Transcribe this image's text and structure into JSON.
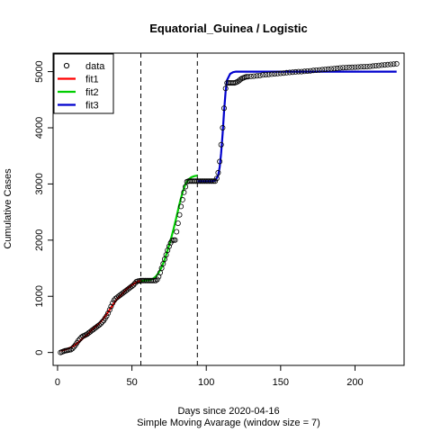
{
  "chart_data": {
    "type": "line",
    "title": "Equatorial_Guinea / Logistic",
    "xlabel": "Days since 2020-04-16",
    "xlabel2": "Simple Moving Avarage (window size = 7)",
    "ylabel": "Cumulative Cases",
    "xlim": [
      -3,
      233
    ],
    "ylim": [
      -230,
      5330
    ],
    "xticks": [
      0,
      50,
      100,
      150,
      200
    ],
    "yticks": [
      0,
      1000,
      2000,
      3000,
      4000,
      5000
    ],
    "grid": false,
    "legend_position": "top-left",
    "legend": [
      {
        "label": "data",
        "kind": "point",
        "color": "#000000"
      },
      {
        "label": "fit1",
        "kind": "line",
        "color": "#ff0000"
      },
      {
        "label": "fit2",
        "kind": "line",
        "color": "#00cd00"
      },
      {
        "label": "fit3",
        "kind": "line",
        "color": "#0000cd"
      }
    ],
    "vlines": [
      56,
      94
    ],
    "data_points": [
      [
        2,
        0
      ],
      [
        3,
        10
      ],
      [
        4,
        20
      ],
      [
        5,
        30
      ],
      [
        6,
        35
      ],
      [
        7,
        40
      ],
      [
        8,
        45
      ],
      [
        9,
        50
      ],
      [
        10,
        70
      ],
      [
        11,
        100
      ],
      [
        12,
        130
      ],
      [
        13,
        170
      ],
      [
        14,
        210
      ],
      [
        15,
        240
      ],
      [
        16,
        270
      ],
      [
        17,
        290
      ],
      [
        18,
        300
      ],
      [
        19,
        315
      ],
      [
        20,
        330
      ],
      [
        21,
        350
      ],
      [
        22,
        370
      ],
      [
        23,
        390
      ],
      [
        24,
        410
      ],
      [
        25,
        430
      ],
      [
        26,
        450
      ],
      [
        27,
        470
      ],
      [
        28,
        490
      ],
      [
        29,
        510
      ],
      [
        30,
        540
      ],
      [
        31,
        570
      ],
      [
        32,
        610
      ],
      [
        33,
        650
      ],
      [
        34,
        700
      ],
      [
        35,
        760
      ],
      [
        36,
        820
      ],
      [
        37,
        880
      ],
      [
        38,
        930
      ],
      [
        39,
        960
      ],
      [
        40,
        980
      ],
      [
        41,
        1000
      ],
      [
        42,
        1020
      ],
      [
        43,
        1040
      ],
      [
        44,
        1060
      ],
      [
        45,
        1080
      ],
      [
        46,
        1100
      ],
      [
        47,
        1120
      ],
      [
        48,
        1140
      ],
      [
        49,
        1160
      ],
      [
        50,
        1180
      ],
      [
        51,
        1200
      ],
      [
        52,
        1230
      ],
      [
        53,
        1260
      ],
      [
        54,
        1270
      ],
      [
        55,
        1275
      ],
      [
        56,
        1280
      ],
      [
        57,
        1280
      ],
      [
        58,
        1280
      ],
      [
        59,
        1280
      ],
      [
        60,
        1280
      ],
      [
        61,
        1280
      ],
      [
        62,
        1280
      ],
      [
        63,
        1280
      ],
      [
        64,
        1280
      ],
      [
        65,
        1280
      ],
      [
        66,
        1280
      ],
      [
        67,
        1300
      ],
      [
        68,
        1350
      ],
      [
        69,
        1420
      ],
      [
        70,
        1500
      ],
      [
        71,
        1580
      ],
      [
        72,
        1660
      ],
      [
        73,
        1740
      ],
      [
        74,
        1820
      ],
      [
        75,
        1890
      ],
      [
        76,
        1950
      ],
      [
        77,
        1990
      ],
      [
        78,
        2000
      ],
      [
        79,
        2000
      ],
      [
        80,
        2150
      ],
      [
        81,
        2300
      ],
      [
        82,
        2450
      ],
      [
        83,
        2600
      ],
      [
        84,
        2720
      ],
      [
        85,
        2850
      ],
      [
        86,
        2950
      ],
      [
        87,
        3040
      ],
      [
        88,
        3050
      ],
      [
        89,
        3050
      ],
      [
        90,
        3050
      ],
      [
        91,
        3050
      ],
      [
        92,
        3050
      ],
      [
        93,
        3050
      ],
      [
        94,
        3050
      ],
      [
        95,
        3050
      ],
      [
        96,
        3050
      ],
      [
        97,
        3050
      ],
      [
        98,
        3050
      ],
      [
        99,
        3050
      ],
      [
        100,
        3050
      ],
      [
        101,
        3050
      ],
      [
        102,
        3050
      ],
      [
        103,
        3050
      ],
      [
        104,
        3050
      ],
      [
        105,
        3050
      ],
      [
        106,
        3050
      ],
      [
        107,
        3100
      ],
      [
        108,
        3200
      ],
      [
        109,
        3400
      ],
      [
        110,
        3700
      ],
      [
        111,
        4000
      ],
      [
        112,
        4350
      ],
      [
        113,
        4700
      ],
      [
        114,
        4800
      ],
      [
        115,
        4800
      ],
      [
        116,
        4800
      ],
      [
        117,
        4800
      ],
      [
        118,
        4800
      ],
      [
        119,
        4800
      ],
      [
        120,
        4810
      ],
      [
        121,
        4820
      ],
      [
        122,
        4840
      ],
      [
        123,
        4860
      ],
      [
        124,
        4880
      ],
      [
        125,
        4890
      ],
      [
        126,
        4900
      ],
      [
        127,
        4910
      ],
      [
        128,
        4910
      ],
      [
        130,
        4915
      ],
      [
        132,
        4920
      ],
      [
        134,
        4925
      ],
      [
        136,
        4930
      ],
      [
        138,
        4940
      ],
      [
        140,
        4945
      ],
      [
        142,
        4950
      ],
      [
        144,
        4955
      ],
      [
        146,
        4960
      ],
      [
        148,
        4965
      ],
      [
        150,
        4970
      ],
      [
        152,
        4975
      ],
      [
        154,
        4980
      ],
      [
        156,
        4985
      ],
      [
        158,
        4990
      ],
      [
        160,
        4995
      ],
      [
        162,
        5000
      ],
      [
        164,
        5000
      ],
      [
        166,
        5005
      ],
      [
        168,
        5010
      ],
      [
        170,
        5015
      ],
      [
        172,
        5020
      ],
      [
        174,
        5025
      ],
      [
        176,
        5030
      ],
      [
        178,
        5035
      ],
      [
        180,
        5040
      ],
      [
        182,
        5045
      ],
      [
        184,
        5050
      ],
      [
        186,
        5055
      ],
      [
        188,
        5060
      ],
      [
        190,
        5065
      ],
      [
        192,
        5070
      ],
      [
        194,
        5072
      ],
      [
        196,
        5075
      ],
      [
        198,
        5077
      ],
      [
        200,
        5080
      ],
      [
        202,
        5082
      ],
      [
        204,
        5085
      ],
      [
        206,
        5088
      ],
      [
        208,
        5090
      ],
      [
        210,
        5095
      ],
      [
        212,
        5100
      ],
      [
        214,
        5105
      ],
      [
        216,
        5110
      ],
      [
        218,
        5115
      ],
      [
        220,
        5120
      ],
      [
        222,
        5125
      ],
      [
        224,
        5130
      ],
      [
        226,
        5135
      ],
      [
        228,
        5140
      ]
    ],
    "series": [
      {
        "name": "fit1",
        "color": "#ff0000",
        "x": [
          2,
          5,
          8,
          11,
          14,
          17,
          20,
          23,
          26,
          29,
          32,
          35,
          38,
          41,
          44,
          47,
          50,
          53,
          56
        ],
        "y": [
          30,
          50,
          80,
          120,
          180,
          250,
          320,
          400,
          470,
          550,
          640,
          760,
          880,
          980,
          1060,
          1140,
          1200,
          1250,
          1280
        ]
      },
      {
        "name": "fit2",
        "color": "#00cd00",
        "x": [
          56,
          58,
          60,
          62,
          64,
          66,
          68,
          70,
          72,
          74,
          76,
          78,
          80,
          82,
          84,
          86,
          88,
          90,
          92,
          94
        ],
        "y": [
          1270,
          1280,
          1285,
          1290,
          1310,
          1350,
          1420,
          1520,
          1650,
          1820,
          2000,
          2200,
          2420,
          2650,
          2850,
          3000,
          3080,
          3120,
          3140,
          3150
        ]
      },
      {
        "name": "fit3",
        "color": "#0000cd",
        "x": [
          94,
          100,
          104,
          106,
          108,
          109,
          110,
          111,
          112,
          113,
          114,
          116,
          118,
          120,
          125,
          130,
          150,
          200,
          228
        ],
        "y": [
          3050,
          3050,
          3052,
          3060,
          3150,
          3300,
          3550,
          3900,
          4300,
          4650,
          4850,
          4960,
          4990,
          5000,
          5000,
          5000,
          5000,
          5000,
          5000
        ]
      }
    ]
  }
}
